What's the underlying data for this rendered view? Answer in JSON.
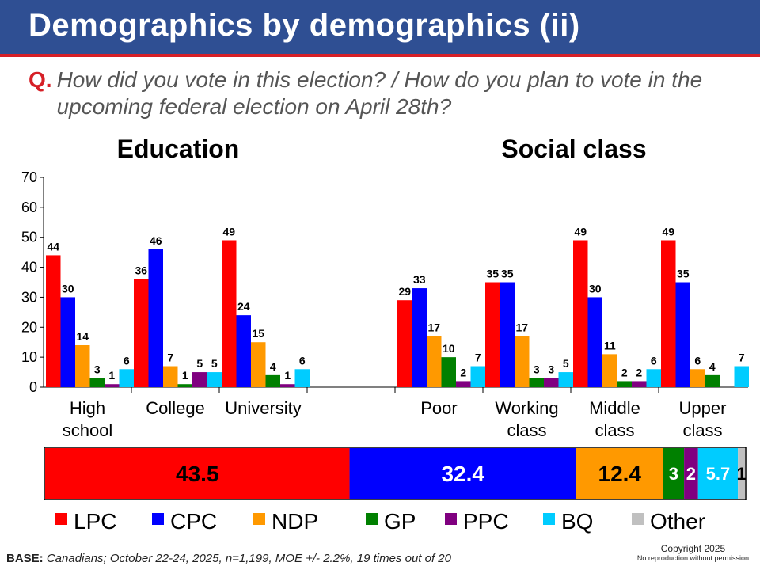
{
  "header": {
    "title": "Demographics by demographics (ii)",
    "question_label": "Q.",
    "question_text": "How did you vote in this election? / How do you plan to vote in the upcoming federal election on April 28th?"
  },
  "colors": {
    "LPC": "#ff0000",
    "CPC": "#0000ff",
    "NDP": "#ff9900",
    "GP": "#008000",
    "PPC": "#800080",
    "BQ": "#00ccff",
    "Other": "#c0c0c0"
  },
  "chart_data": [
    {
      "type": "bar",
      "title": "Education",
      "categories": [
        "High school",
        "College",
        "University"
      ],
      "category_lines": [
        [
          "High",
          "school"
        ],
        [
          "College"
        ],
        [
          "University"
        ]
      ],
      "ylim": [
        0,
        70
      ],
      "yticks": [
        0,
        10,
        20,
        30,
        40,
        50,
        60,
        70
      ],
      "series": [
        {
          "name": "LPC",
          "values": [
            44,
            36,
            49
          ]
        },
        {
          "name": "CPC",
          "values": [
            30,
            46,
            24
          ]
        },
        {
          "name": "NDP",
          "values": [
            14,
            7,
            15
          ]
        },
        {
          "name": "GP",
          "values": [
            3,
            1,
            4
          ]
        },
        {
          "name": "PPC",
          "values": [
            1,
            5,
            1
          ]
        },
        {
          "name": "BQ",
          "values": [
            6,
            5,
            6
          ]
        }
      ]
    },
    {
      "type": "bar",
      "title": "Social class",
      "categories": [
        "Poor",
        "Working class",
        "Middle class",
        "Upper class"
      ],
      "category_lines": [
        [
          "Poor"
        ],
        [
          "Working",
          "class"
        ],
        [
          "Middle",
          "class"
        ],
        [
          "Upper",
          "class"
        ]
      ],
      "ylim": [
        0,
        70
      ],
      "series": [
        {
          "name": "LPC",
          "values": [
            29,
            35,
            49,
            49
          ]
        },
        {
          "name": "CPC",
          "values": [
            33,
            35,
            30,
            35
          ]
        },
        {
          "name": "NDP",
          "values": [
            17,
            17,
            11,
            6
          ]
        },
        {
          "name": "GP",
          "values": [
            10,
            3,
            2,
            4
          ]
        },
        {
          "name": "PPC",
          "values": [
            2,
            3,
            2,
            null
          ]
        },
        {
          "name": "BQ",
          "values": [
            7,
            5,
            6,
            7
          ]
        }
      ]
    },
    {
      "type": "bar",
      "stacked": true,
      "orientation": "horizontal",
      "segments": [
        {
          "name": "LPC",
          "value": 43.5,
          "label": "43.5"
        },
        {
          "name": "CPC",
          "value": 32.4,
          "label": "32.4"
        },
        {
          "name": "NDP",
          "value": 12.4,
          "label": "12.4"
        },
        {
          "name": "GP",
          "value": 3,
          "label": "3"
        },
        {
          "name": "PPC",
          "value": 2,
          "label": "2"
        },
        {
          "name": "BQ",
          "value": 5.7,
          "label": "5.7"
        },
        {
          "name": "Other",
          "value": 1,
          "label": "1"
        }
      ]
    }
  ],
  "legend": [
    "LPC",
    "CPC",
    "NDP",
    "GP",
    "PPC",
    "BQ",
    "Other"
  ],
  "footer": {
    "base_label": "BASE:",
    "base_text": " Canadians; October 22-24, 2025, n=1,199, MOE +/- 2.2%, 19 times out of 20",
    "copyright": "Copyright 2025",
    "no_reproduction": "No reproduction without permission"
  }
}
